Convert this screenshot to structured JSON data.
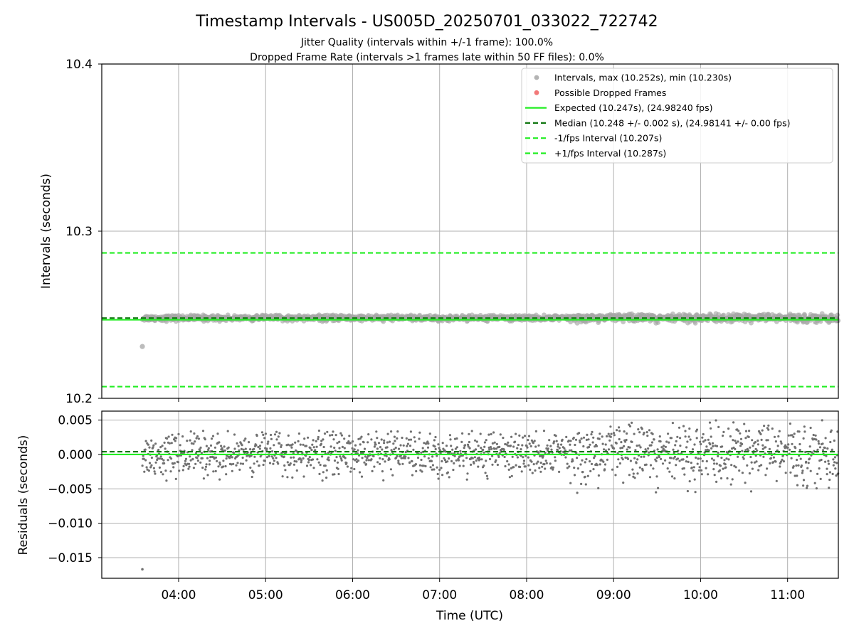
{
  "chart_data": [
    {
      "type": "scatter",
      "panel": "intervals",
      "title": "Timestamp Intervals - US005D_20250701_033022_722742",
      "subtitle_lines": [
        "Jitter Quality (intervals within +/-1 frame): 100.0%",
        "Dropped Frame Rate (intervals >1 frames late within 50 FF files): 0.0%"
      ],
      "xlabel": "",
      "ylabel": "Intervals (seconds)",
      "xlim": [
        "03:07",
        "11:35"
      ],
      "ylim": [
        10.2,
        10.4
      ],
      "yticks": [
        "10.2",
        "10.3",
        "10.4"
      ],
      "grid": true,
      "legend_position": "upper right",
      "legend": [
        {
          "label": "Intervals, max (10.252s), min (10.230s)",
          "kind": "dot",
          "color": "#a6a6a6"
        },
        {
          "label": "Possible Dropped Frames",
          "kind": "dot",
          "color": "#f06060"
        },
        {
          "label": "Expected (10.247s), (24.98240 fps)",
          "kind": "solid",
          "color": "#22ee22"
        },
        {
          "label": "Median (10.248 +/- 0.002 s), (24.98141 +/- 0.00 fps)",
          "kind": "dashed",
          "color": "#117711"
        },
        {
          "label": "-1/fps Interval (10.207s)",
          "kind": "dashed",
          "color": "#22ee22"
        },
        {
          "label": "+1/fps Interval (10.287s)",
          "kind": "dashed",
          "color": "#22ee22"
        }
      ],
      "reference_lines": [
        {
          "name": "Expected",
          "y": 10.247,
          "style": "solid",
          "color": "#22ee22"
        },
        {
          "name": "Median",
          "y": 10.248,
          "style": "dashed",
          "color": "#117711"
        },
        {
          "name": "-1/fps Interval",
          "y": 10.207,
          "style": "dashed",
          "color": "#22ee22"
        },
        {
          "name": "+1/fps Interval",
          "y": 10.287,
          "style": "dashed",
          "color": "#22ee22"
        }
      ],
      "series": [
        {
          "name": "Intervals",
          "color": "#a6a6a6",
          "description_of_points": "dense band from 03:35 to 11:35 around 10.248 s",
          "band_center": 10.248,
          "band_halfwidth": 0.003,
          "outliers": [
            {
              "x": "03:35",
              "y": 10.231
            }
          ]
        },
        {
          "name": "Possible Dropped Frames",
          "color": "#f06060",
          "points": []
        }
      ]
    },
    {
      "type": "scatter",
      "panel": "residuals",
      "xlabel": "Time (UTC)",
      "ylabel": "Residuals (seconds)",
      "xlim": [
        "03:07",
        "11:35"
      ],
      "ylim": [
        -0.018,
        0.0063
      ],
      "xticks": [
        "04:00",
        "05:00",
        "06:00",
        "07:00",
        "08:00",
        "09:00",
        "10:00",
        "11:00"
      ],
      "yticks": [
        "0.005",
        "0.000",
        "−0.005",
        "−0.010",
        "−0.015"
      ],
      "grid": true,
      "reference_lines": [
        {
          "name": "Expected",
          "y": 0.0,
          "style": "solid",
          "color": "#22ee22"
        },
        {
          "name": "Median",
          "y": 0.0004,
          "style": "dashed",
          "color": "#117711"
        }
      ],
      "series": [
        {
          "name": "Residuals",
          "color": "#707070",
          "band_center": 0.0,
          "band_halfwidth_early": 0.0035,
          "band_halfwidth_late": 0.005,
          "outliers": [
            {
              "x": "03:35",
              "y": -0.0167
            }
          ]
        }
      ]
    }
  ]
}
